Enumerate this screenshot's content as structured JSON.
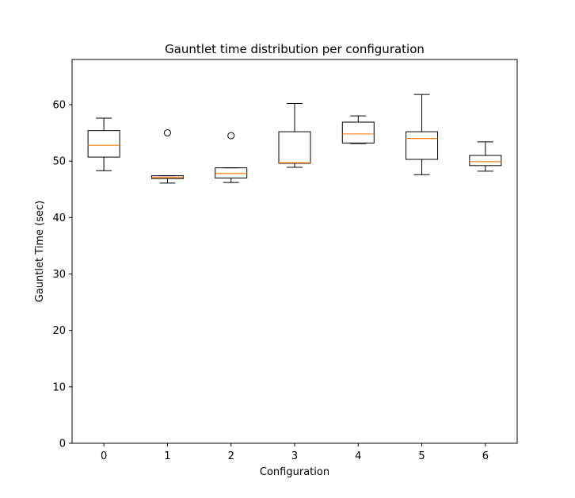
{
  "chart_data": {
    "type": "box",
    "title": "Gauntlet time distribution per configuration",
    "xlabel": "Configuration",
    "ylabel": "Gauntlet Time (sec)",
    "ylim": [
      0,
      68
    ],
    "xlim": [
      -0.5,
      6.5
    ],
    "grid": false,
    "x_ticks": [
      "0",
      "1",
      "2",
      "3",
      "4",
      "5",
      "6"
    ],
    "y_ticks": [
      0,
      10,
      20,
      30,
      40,
      50,
      60
    ],
    "boxes": [
      {
        "category": "0",
        "whisker_low": 48.3,
        "q1": 50.7,
        "median": 52.8,
        "q3": 55.4,
        "whisker_high": 57.6,
        "outliers": []
      },
      {
        "category": "1",
        "whisker_low": 46.1,
        "q1": 46.9,
        "median": 47.1,
        "q3": 47.4,
        "whisker_high": 47.4,
        "outliers": [
          55.0
        ]
      },
      {
        "category": "2",
        "whisker_low": 46.2,
        "q1": 47.0,
        "median": 47.8,
        "q3": 48.8,
        "whisker_high": 48.8,
        "outliers": [
          54.5
        ]
      },
      {
        "category": "3",
        "whisker_low": 48.9,
        "q1": 49.6,
        "median": 49.7,
        "q3": 55.2,
        "whisker_high": 60.2,
        "outliers": []
      },
      {
        "category": "4",
        "whisker_low": 53.1,
        "q1": 53.2,
        "median": 54.8,
        "q3": 56.9,
        "whisker_high": 58.0,
        "outliers": []
      },
      {
        "category": "5",
        "whisker_low": 47.6,
        "q1": 50.3,
        "median": 54.0,
        "q3": 55.2,
        "whisker_high": 61.8,
        "outliers": []
      },
      {
        "category": "6",
        "whisker_low": 48.2,
        "q1": 49.2,
        "median": 49.9,
        "q3": 51.0,
        "whisker_high": 53.4,
        "outliers": []
      }
    ],
    "colors": {
      "box": "#000000",
      "median": "#ff7f0e",
      "outlier": "#000000"
    }
  }
}
